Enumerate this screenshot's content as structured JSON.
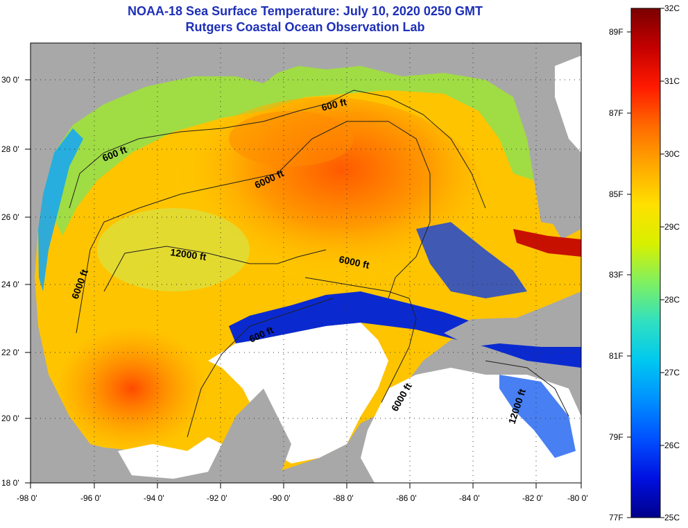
{
  "title": "NOAA-18 Sea Surface Temperature:  July 10, 2020 0250 GMT",
  "subtitle": "Rutgers Coastal Ocean Observation Lab",
  "colors": {
    "title": "#1d2fb8",
    "land": "#a8a8a8",
    "cloud": "#ffffff"
  },
  "axes": {
    "lon_ticks": [
      "-98 0'",
      "-96 0'",
      "-94 0'",
      "-92 0'",
      "-90 0'",
      "-88 0'",
      "-86 0'",
      "-84 0'",
      "-82 0'",
      "-80 0'"
    ],
    "lat_ticks": [
      "30 0'",
      "28 0'",
      "26 0'",
      "24 0'",
      "22 0'",
      "20 0'",
      "18 0'"
    ]
  },
  "contours": [
    {
      "label": "600 ft",
      "rotate": -22
    },
    {
      "label": "600 ft",
      "rotate": -14
    },
    {
      "label": "6000 ft",
      "rotate": -25
    },
    {
      "label": "12000 ft",
      "rotate": 8
    },
    {
      "label": "6000 ft",
      "rotate": 12
    },
    {
      "label": "6000 ft",
      "rotate": -70
    },
    {
      "label": "600 ft",
      "rotate": -24
    },
    {
      "label": "6000 ft",
      "rotate": -60
    },
    {
      "label": "12000 ft",
      "rotate": -72
    }
  ],
  "colorbar": {
    "celsius_labels": [
      "32C",
      "31C",
      "30C",
      "29C",
      "28C",
      "27C",
      "26C",
      "25C"
    ],
    "fahrenheit_labels": [
      "89F",
      "87F",
      "85F",
      "83F",
      "81F",
      "79F",
      "77F"
    ],
    "stops": [
      "#7a0000",
      "#c40000",
      "#ff1a00",
      "#ff6a00",
      "#ffa800",
      "#ffe000",
      "#d8f000",
      "#80f060",
      "#30e0c0",
      "#00c8f0",
      "#0090ff",
      "#0050ff",
      "#0010e0",
      "#00008a"
    ]
  }
}
